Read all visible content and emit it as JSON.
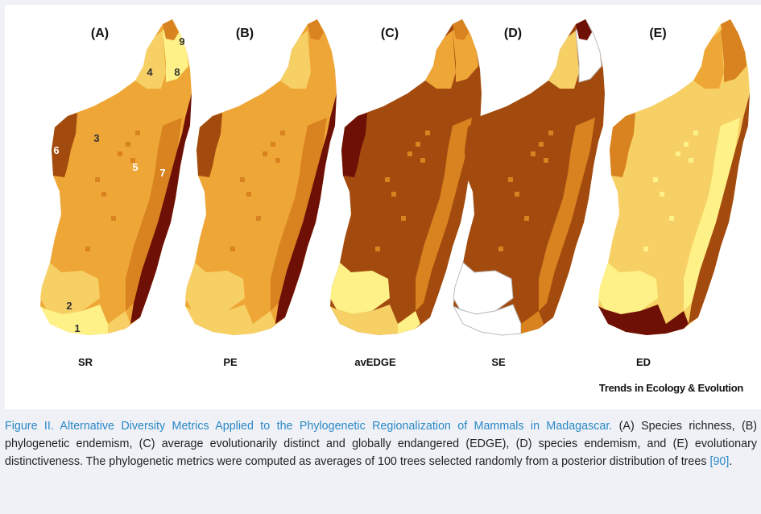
{
  "figure": {
    "panels": [
      {
        "letter": "(A)",
        "metric": "SR"
      },
      {
        "letter": "(B)",
        "metric": "PE"
      },
      {
        "letter": "(C)",
        "metric": "avEDGE"
      },
      {
        "letter": "(D)",
        "metric": "SE"
      },
      {
        "letter": "(E)",
        "metric": "ED"
      }
    ],
    "region_numbers": [
      "1",
      "2",
      "3",
      "4",
      "5",
      "6",
      "7",
      "8",
      "9"
    ],
    "journal_mark": "Trends in Ecology & Evolution",
    "palette": {
      "pale": "#fdf188",
      "light": "#f7d065",
      "orange": "#eea636",
      "mid": "#d88220",
      "brown": "#a34b0e",
      "dark": "#6f1006",
      "white": "#ffffff"
    }
  },
  "caption": {
    "title": "Figure II. Alternative Diversity Metrics Applied to the Phylogenetic Regionalization of Mammals in Madagascar.",
    "body": " (A) Species richness, (B) phylogenetic endemism, (C) average evolutionarily distinct and globally endangered (EDGE), (D) species endemism, and (E) evolutionary distinctiveness. The phylogenetic metrics were computed as averages of 100 trees selected randomly from a posterior distribution of trees ",
    "ref": "[90]",
    "end": "."
  }
}
